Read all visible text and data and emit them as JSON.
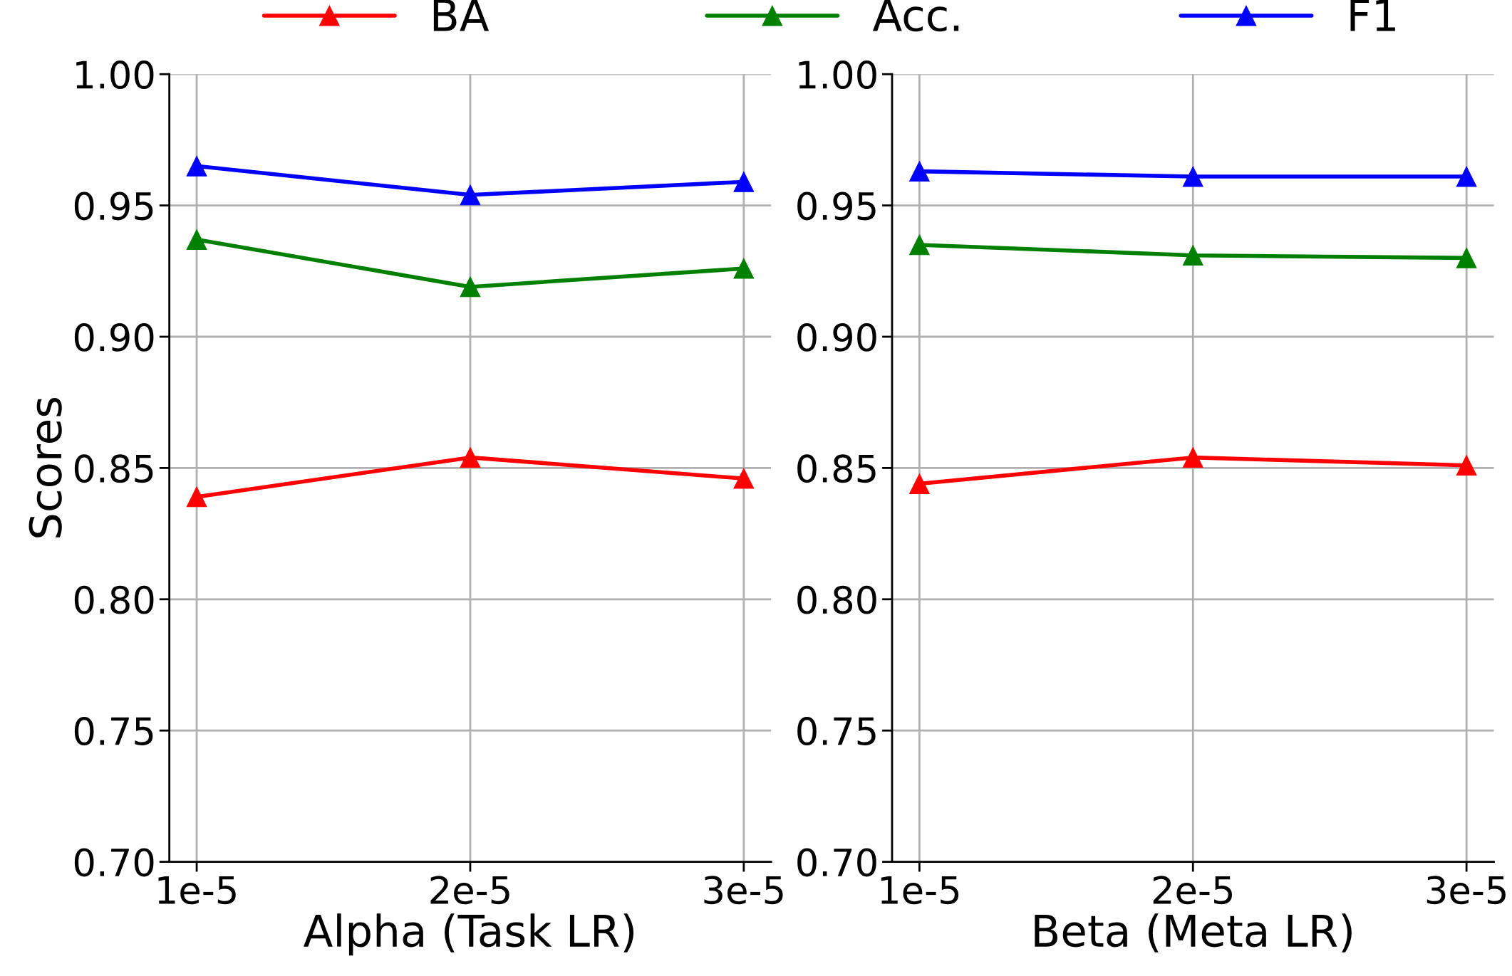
{
  "chart_data": [
    {
      "type": "line",
      "xlabel": "Alpha (Task LR)",
      "ylabel": "Scores",
      "categories": [
        "1e-5",
        "2e-5",
        "3e-5"
      ],
      "ylim": [
        0.7,
        1.0
      ],
      "yticks": [
        {
          "value": 0.7,
          "label": "0.70"
        },
        {
          "value": 0.75,
          "label": "0.75"
        },
        {
          "value": 0.8,
          "label": "0.80"
        },
        {
          "value": 0.85,
          "label": "0.85"
        },
        {
          "value": 0.9,
          "label": "0.90"
        },
        {
          "value": 0.95,
          "label": "0.95"
        },
        {
          "value": 1.0,
          "label": "1.00"
        }
      ],
      "grid": true,
      "marker": "triangle",
      "line_style": "solid",
      "legend": "top",
      "series": [
        {
          "name": "BA",
          "color": "#ff0000",
          "values": [
            0.839,
            0.854,
            0.846
          ]
        },
        {
          "name": "Acc.",
          "color": "#008000",
          "values": [
            0.937,
            0.919,
            0.926
          ]
        },
        {
          "name": "F1",
          "color": "#0000ff",
          "values": [
            0.965,
            0.954,
            0.959
          ]
        }
      ]
    },
    {
      "type": "line",
      "xlabel": "Beta (Meta LR)",
      "categories": [
        "1e-5",
        "2e-5",
        "3e-5"
      ],
      "ylim": [
        0.7,
        1.0
      ],
      "yticks": [
        {
          "value": 0.7,
          "label": "0.70"
        },
        {
          "value": 0.75,
          "label": "0.75"
        },
        {
          "value": 0.8,
          "label": "0.80"
        },
        {
          "value": 0.85,
          "label": "0.85"
        },
        {
          "value": 0.9,
          "label": "0.90"
        },
        {
          "value": 0.95,
          "label": "0.95"
        },
        {
          "value": 1.0,
          "label": "1.00"
        }
      ],
      "grid": true,
      "marker": "triangle",
      "line_style": "solid",
      "series": [
        {
          "color": "#ff0000",
          "values": [
            0.844,
            0.854,
            0.851
          ]
        },
        {
          "color": "#008000",
          "values": [
            0.935,
            0.931,
            0.93
          ]
        },
        {
          "color": "#0000ff",
          "values": [
            0.963,
            0.961,
            0.961
          ]
        }
      ]
    }
  ]
}
